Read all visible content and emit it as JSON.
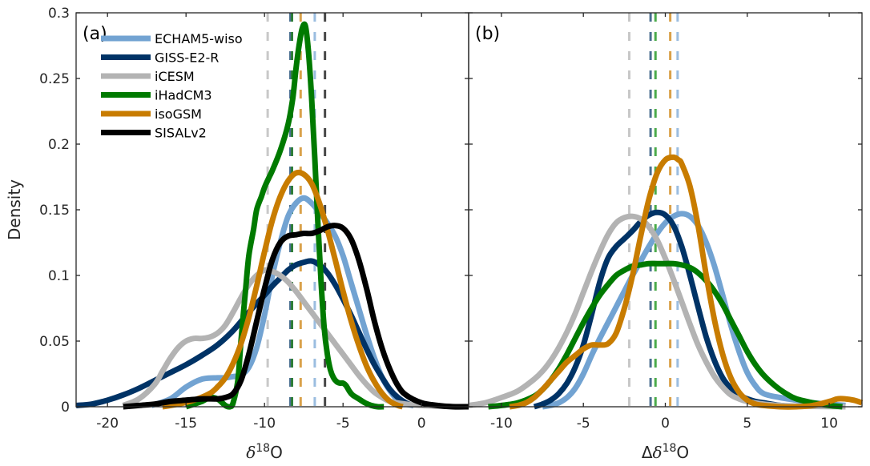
{
  "chart_data": [
    {
      "type": "line",
      "panel_label": "(a)",
      "xlabel": "δ18O",
      "ylabel": "Density",
      "xlim": [
        -22,
        3
      ],
      "ylim": [
        0,
        0.3
      ],
      "xticks": [
        -20,
        -15,
        -10,
        -5,
        0
      ],
      "yticks": [
        0,
        0.05,
        0.1,
        0.15,
        0.2,
        0.25,
        0.3
      ],
      "ytick_labels": [
        "0",
        "0.05",
        "0.1",
        "0.15",
        "0.2",
        "0.25",
        "0.3"
      ],
      "legend": {
        "placement": "top-left",
        "entries": [
          "ECHAM5-wiso",
          "GISS-E2-R",
          "iCESM",
          "iHadCM3",
          "isoGSM",
          "SISALv2"
        ]
      },
      "series": [
        {
          "name": "ECHAM5-wiso",
          "color": "#72a3d2",
          "x": [
            -17.2,
            -16,
            -15,
            -14,
            -13,
            -12.5,
            -12,
            -11.5,
            -11,
            -10.5,
            -10,
            -9.5,
            -9,
            -8.5,
            -8,
            -7.5,
            -7,
            -6.5,
            -6,
            -5.5,
            -5,
            -4.5,
            -4,
            -3.5,
            -3,
            -2.5,
            -2,
            -1.5,
            -1,
            -0.5
          ],
          "y": [
            0.001,
            0.006,
            0.015,
            0.021,
            0.022,
            0.022,
            0.023,
            0.024,
            0.03,
            0.045,
            0.07,
            0.1,
            0.125,
            0.145,
            0.155,
            0.159,
            0.155,
            0.148,
            0.14,
            0.13,
            0.115,
            0.095,
            0.075,
            0.055,
            0.037,
            0.022,
            0.012,
            0.005,
            0.002,
            0.001
          ]
        },
        {
          "name": "GISS-E2-R",
          "color": "#003366",
          "x": [
            -22,
            -21,
            -20,
            -19,
            -18,
            -17,
            -16,
            -15,
            -14,
            -13,
            -12,
            -11,
            -10,
            -9.5,
            -9,
            -8.5,
            -8,
            -7.5,
            -7,
            -6.5,
            -6,
            -5.5,
            -5,
            -4.5,
            -4,
            -3.5,
            -3,
            -2.5,
            -2,
            -1.5,
            -1,
            -0.5
          ],
          "y": [
            0.001,
            0.002,
            0.005,
            0.009,
            0.014,
            0.02,
            0.026,
            0.032,
            0.039,
            0.047,
            0.058,
            0.072,
            0.085,
            0.092,
            0.098,
            0.104,
            0.108,
            0.11,
            0.111,
            0.108,
            0.102,
            0.093,
            0.082,
            0.07,
            0.057,
            0.044,
            0.032,
            0.022,
            0.013,
            0.007,
            0.003,
            0.001
          ]
        },
        {
          "name": "iCESM",
          "color": "#b3b3b3",
          "x": [
            -19,
            -18,
            -17,
            -16.5,
            -16,
            -15.5,
            -15,
            -14.5,
            -14,
            -13.5,
            -13,
            -12.5,
            -12,
            -11.5,
            -11,
            -10.5,
            -10,
            -9.5,
            -9,
            -8.5,
            -8,
            -7.5,
            -7,
            -6.5,
            -6,
            -5.5,
            -5,
            -4.5,
            -4,
            -3.5,
            -3,
            -2.5,
            -2,
            -1,
            0,
            1,
            2,
            3
          ],
          "y": [
            0.001,
            0.006,
            0.017,
            0.027,
            0.037,
            0.045,
            0.05,
            0.052,
            0.052,
            0.053,
            0.056,
            0.062,
            0.072,
            0.083,
            0.093,
            0.1,
            0.104,
            0.103,
            0.1,
            0.095,
            0.088,
            0.08,
            0.072,
            0.064,
            0.056,
            0.048,
            0.04,
            0.032,
            0.024,
            0.017,
            0.011,
            0.007,
            0.004,
            0.002,
            0.001,
            0.0005,
            0.0002,
            0
          ]
        },
        {
          "name": "iHadCM3",
          "color": "#007a00",
          "x": [
            -15,
            -14,
            -13.5,
            -13,
            -12.5,
            -12.2,
            -12,
            -11.7,
            -11.5,
            -11.2,
            -11,
            -10.7,
            -10.5,
            -10.2,
            -10,
            -9.7,
            -9.5,
            -9,
            -8.5,
            -8.2,
            -8,
            -7.8,
            -7.6,
            -7.4,
            -7.2,
            -7,
            -6.8,
            -6.6,
            -6.4,
            -6.2,
            -6,
            -5.8,
            -5.6,
            -5.4,
            -5.2,
            -5,
            -4.8,
            -4.6,
            -4.4,
            -4,
            -3.6,
            -3.2,
            -2.8,
            -2.4
          ],
          "y": [
            0,
            0.004,
            0.007,
            0.006,
            0.001,
            0,
            0.003,
            0.02,
            0.05,
            0.09,
            0.115,
            0.135,
            0.15,
            0.16,
            0.167,
            0.175,
            0.18,
            0.195,
            0.215,
            0.235,
            0.257,
            0.275,
            0.288,
            0.29,
            0.27,
            0.235,
            0.19,
            0.14,
            0.095,
            0.06,
            0.04,
            0.028,
            0.022,
            0.019,
            0.018,
            0.018,
            0.016,
            0.012,
            0.009,
            0.006,
            0.003,
            0.001,
            0,
            0
          ]
        },
        {
          "name": "isoGSM",
          "color": "#c87c00",
          "x": [
            -16.5,
            -15.5,
            -14.5,
            -13.5,
            -13,
            -12.5,
            -12,
            -11.5,
            -11,
            -10.5,
            -10,
            -9.5,
            -9,
            -8.5,
            -8,
            -7.5,
            -7,
            -6.5,
            -6,
            -5.5,
            -5,
            -4.5,
            -4,
            -3.5,
            -3,
            -2.5,
            -2,
            -1.5,
            -1.2
          ],
          "y": [
            0,
            0.002,
            0.005,
            0.01,
            0.015,
            0.022,
            0.033,
            0.048,
            0.068,
            0.092,
            0.118,
            0.142,
            0.16,
            0.172,
            0.178,
            0.177,
            0.17,
            0.155,
            0.135,
            0.112,
            0.088,
            0.066,
            0.047,
            0.031,
            0.019,
            0.01,
            0.004,
            0.001,
            0
          ]
        },
        {
          "name": "SISALv2",
          "color": "#000000",
          "x": [
            -19,
            -18,
            -17,
            -16,
            -15,
            -14,
            -13,
            -12.5,
            -12,
            -11.5,
            -11,
            -10.5,
            -10,
            -9.5,
            -9,
            -8.5,
            -8,
            -7.5,
            -7,
            -6.5,
            -6,
            -5.5,
            -5,
            -4.5,
            -4,
            -3.5,
            -3,
            -2.5,
            -2,
            -1.5,
            -1,
            0,
            1,
            2,
            3
          ],
          "y": [
            0,
            0.001,
            0.002,
            0.004,
            0.005,
            0.006,
            0.006,
            0.007,
            0.01,
            0.02,
            0.04,
            0.065,
            0.09,
            0.112,
            0.125,
            0.13,
            0.131,
            0.132,
            0.132,
            0.134,
            0.137,
            0.138,
            0.136,
            0.128,
            0.112,
            0.09,
            0.065,
            0.044,
            0.028,
            0.016,
            0.009,
            0.003,
            0.001,
            0,
            0
          ]
        }
      ],
      "vlines": [
        {
          "name": "iCESM",
          "x": -9.8,
          "color": "#c8c8c8"
        },
        {
          "name": "GISS-E2-R",
          "x": -8.35,
          "color": "#4a6f91"
        },
        {
          "name": "iHadCM3",
          "x": -8.25,
          "color": "#2e7d3a"
        },
        {
          "name": "isoGSM",
          "x": -7.7,
          "color": "#d9a14a"
        },
        {
          "name": "ECHAM5-wiso",
          "x": -6.8,
          "color": "#9bbde0"
        },
        {
          "name": "SISALv2",
          "x": -6.15,
          "color": "#474747"
        }
      ]
    },
    {
      "type": "line",
      "panel_label": "(b)",
      "xlabel": "Δδ18O",
      "ylabel": "",
      "xlim": [
        -12,
        12
      ],
      "ylim": [
        0,
        0.3
      ],
      "xticks": [
        -10,
        -5,
        0,
        5,
        10
      ],
      "yticks": [
        0,
        0.05,
        0.1,
        0.15,
        0.2,
        0.25,
        0.3
      ],
      "series": [
        {
          "name": "ECHAM5-wiso",
          "color": "#72a3d2",
          "x": [
            -7.5,
            -7,
            -6.5,
            -6,
            -5.5,
            -5,
            -4.5,
            -4,
            -3.5,
            -3,
            -2.5,
            -2,
            -1.5,
            -1,
            -0.5,
            0,
            0.5,
            1,
            1.5,
            2,
            2.5,
            3,
            3.5,
            4,
            4.5,
            5,
            5.5,
            6,
            7,
            8,
            9,
            10,
            11
          ],
          "y": [
            0,
            0.001,
            0.003,
            0.007,
            0.014,
            0.025,
            0.039,
            0.052,
            0.064,
            0.076,
            0.088,
            0.1,
            0.111,
            0.122,
            0.132,
            0.14,
            0.145,
            0.147,
            0.145,
            0.138,
            0.125,
            0.107,
            0.085,
            0.062,
            0.042,
            0.026,
            0.016,
            0.01,
            0.007,
            0.005,
            0.003,
            0.002,
            0.001
          ]
        },
        {
          "name": "GISS-E2-R",
          "color": "#003366",
          "x": [
            -8,
            -7.5,
            -7,
            -6.5,
            -6,
            -5.5,
            -5,
            -4.5,
            -4,
            -3.5,
            -3,
            -2.5,
            -2,
            -1.5,
            -1,
            -0.5,
            0,
            0.5,
            1,
            1.5,
            2,
            2.5,
            3,
            3.5,
            4,
            4.5,
            5,
            5.5,
            6,
            7,
            8
          ],
          "y": [
            0,
            0.002,
            0.005,
            0.01,
            0.018,
            0.03,
            0.047,
            0.07,
            0.095,
            0.113,
            0.122,
            0.128,
            0.134,
            0.141,
            0.146,
            0.148,
            0.146,
            0.138,
            0.122,
            0.1,
            0.076,
            0.053,
            0.035,
            0.022,
            0.014,
            0.009,
            0.006,
            0.004,
            0.003,
            0.001,
            0
          ]
        },
        {
          "name": "iCESM",
          "color": "#b3b3b3",
          "x": [
            -12,
            -11,
            -10,
            -9,
            -8,
            -7.5,
            -7,
            -6.5,
            -6,
            -5.5,
            -5,
            -4.5,
            -4,
            -3.5,
            -3,
            -2.5,
            -2,
            -1.5,
            -1,
            -0.5,
            0,
            0.5,
            1,
            1.5,
            2,
            2.5,
            3,
            3.5,
            4,
            4.5,
            5,
            6,
            7,
            8,
            9,
            10,
            11
          ],
          "y": [
            0.001,
            0.003,
            0.007,
            0.012,
            0.021,
            0.027,
            0.035,
            0.045,
            0.057,
            0.071,
            0.087,
            0.103,
            0.118,
            0.131,
            0.14,
            0.144,
            0.145,
            0.143,
            0.137,
            0.127,
            0.113,
            0.097,
            0.08,
            0.063,
            0.047,
            0.034,
            0.023,
            0.015,
            0.009,
            0.006,
            0.004,
            0.002,
            0.001,
            0.0005,
            0.0003,
            0.0002,
            0
          ]
        },
        {
          "name": "iHadCM3",
          "color": "#007a00",
          "x": [
            -10.8,
            -10,
            -9,
            -8,
            -7.5,
            -7,
            -6.5,
            -6,
            -5.5,
            -5,
            -4.5,
            -4,
            -3.5,
            -3,
            -2.5,
            -2,
            -1.5,
            -1,
            -0.5,
            0,
            0.5,
            1,
            1.5,
            2,
            2.5,
            3,
            3.5,
            4,
            4.5,
            5,
            5.5,
            6,
            6.5,
            7,
            7.5,
            8,
            9,
            10,
            10.8
          ],
          "y": [
            0,
            0.001,
            0.003,
            0.008,
            0.013,
            0.02,
            0.029,
            0.04,
            0.052,
            0.064,
            0.075,
            0.085,
            0.093,
            0.1,
            0.104,
            0.107,
            0.108,
            0.109,
            0.109,
            0.109,
            0.109,
            0.108,
            0.106,
            0.102,
            0.096,
            0.088,
            0.078,
            0.066,
            0.054,
            0.042,
            0.032,
            0.024,
            0.018,
            0.013,
            0.009,
            0.006,
            0.003,
            0.001,
            0
          ]
        },
        {
          "name": "isoGSM",
          "color": "#c87c00",
          "x": [
            -9.5,
            -9,
            -8.5,
            -8,
            -7.5,
            -7,
            -6.5,
            -6,
            -5.5,
            -5,
            -4.5,
            -4,
            -3.5,
            -3,
            -2.5,
            -2,
            -1.5,
            -1,
            -0.5,
            0,
            0.5,
            0.8,
            1,
            1.5,
            2,
            2.5,
            3,
            3.5,
            4,
            4.5,
            5,
            5.5,
            6,
            7,
            8,
            9,
            10,
            10.5,
            11,
            11.5,
            12
          ],
          "y": [
            0,
            0.001,
            0.003,
            0.007,
            0.013,
            0.02,
            0.027,
            0.034,
            0.039,
            0.044,
            0.047,
            0.047,
            0.048,
            0.056,
            0.075,
            0.1,
            0.13,
            0.158,
            0.178,
            0.188,
            0.19,
            0.188,
            0.185,
            0.168,
            0.138,
            0.1,
            0.066,
            0.04,
            0.022,
            0.011,
            0.005,
            0.002,
            0.001,
            0,
            0,
            0.001,
            0.004,
            0.006,
            0.006,
            0.005,
            0.003
          ]
        }
      ],
      "vlines": [
        {
          "name": "iCESM",
          "x": -2.2,
          "color": "#c8c8c8"
        },
        {
          "name": "GISS-E2-R",
          "x": -0.9,
          "color": "#4a6f91"
        },
        {
          "name": "iHadCM3",
          "x": -0.6,
          "color": "#4caa4c"
        },
        {
          "name": "isoGSM",
          "x": 0.3,
          "color": "#d9a14a"
        },
        {
          "name": "ECHAM5-wiso",
          "x": 0.75,
          "color": "#9bbde0"
        }
      ]
    }
  ]
}
